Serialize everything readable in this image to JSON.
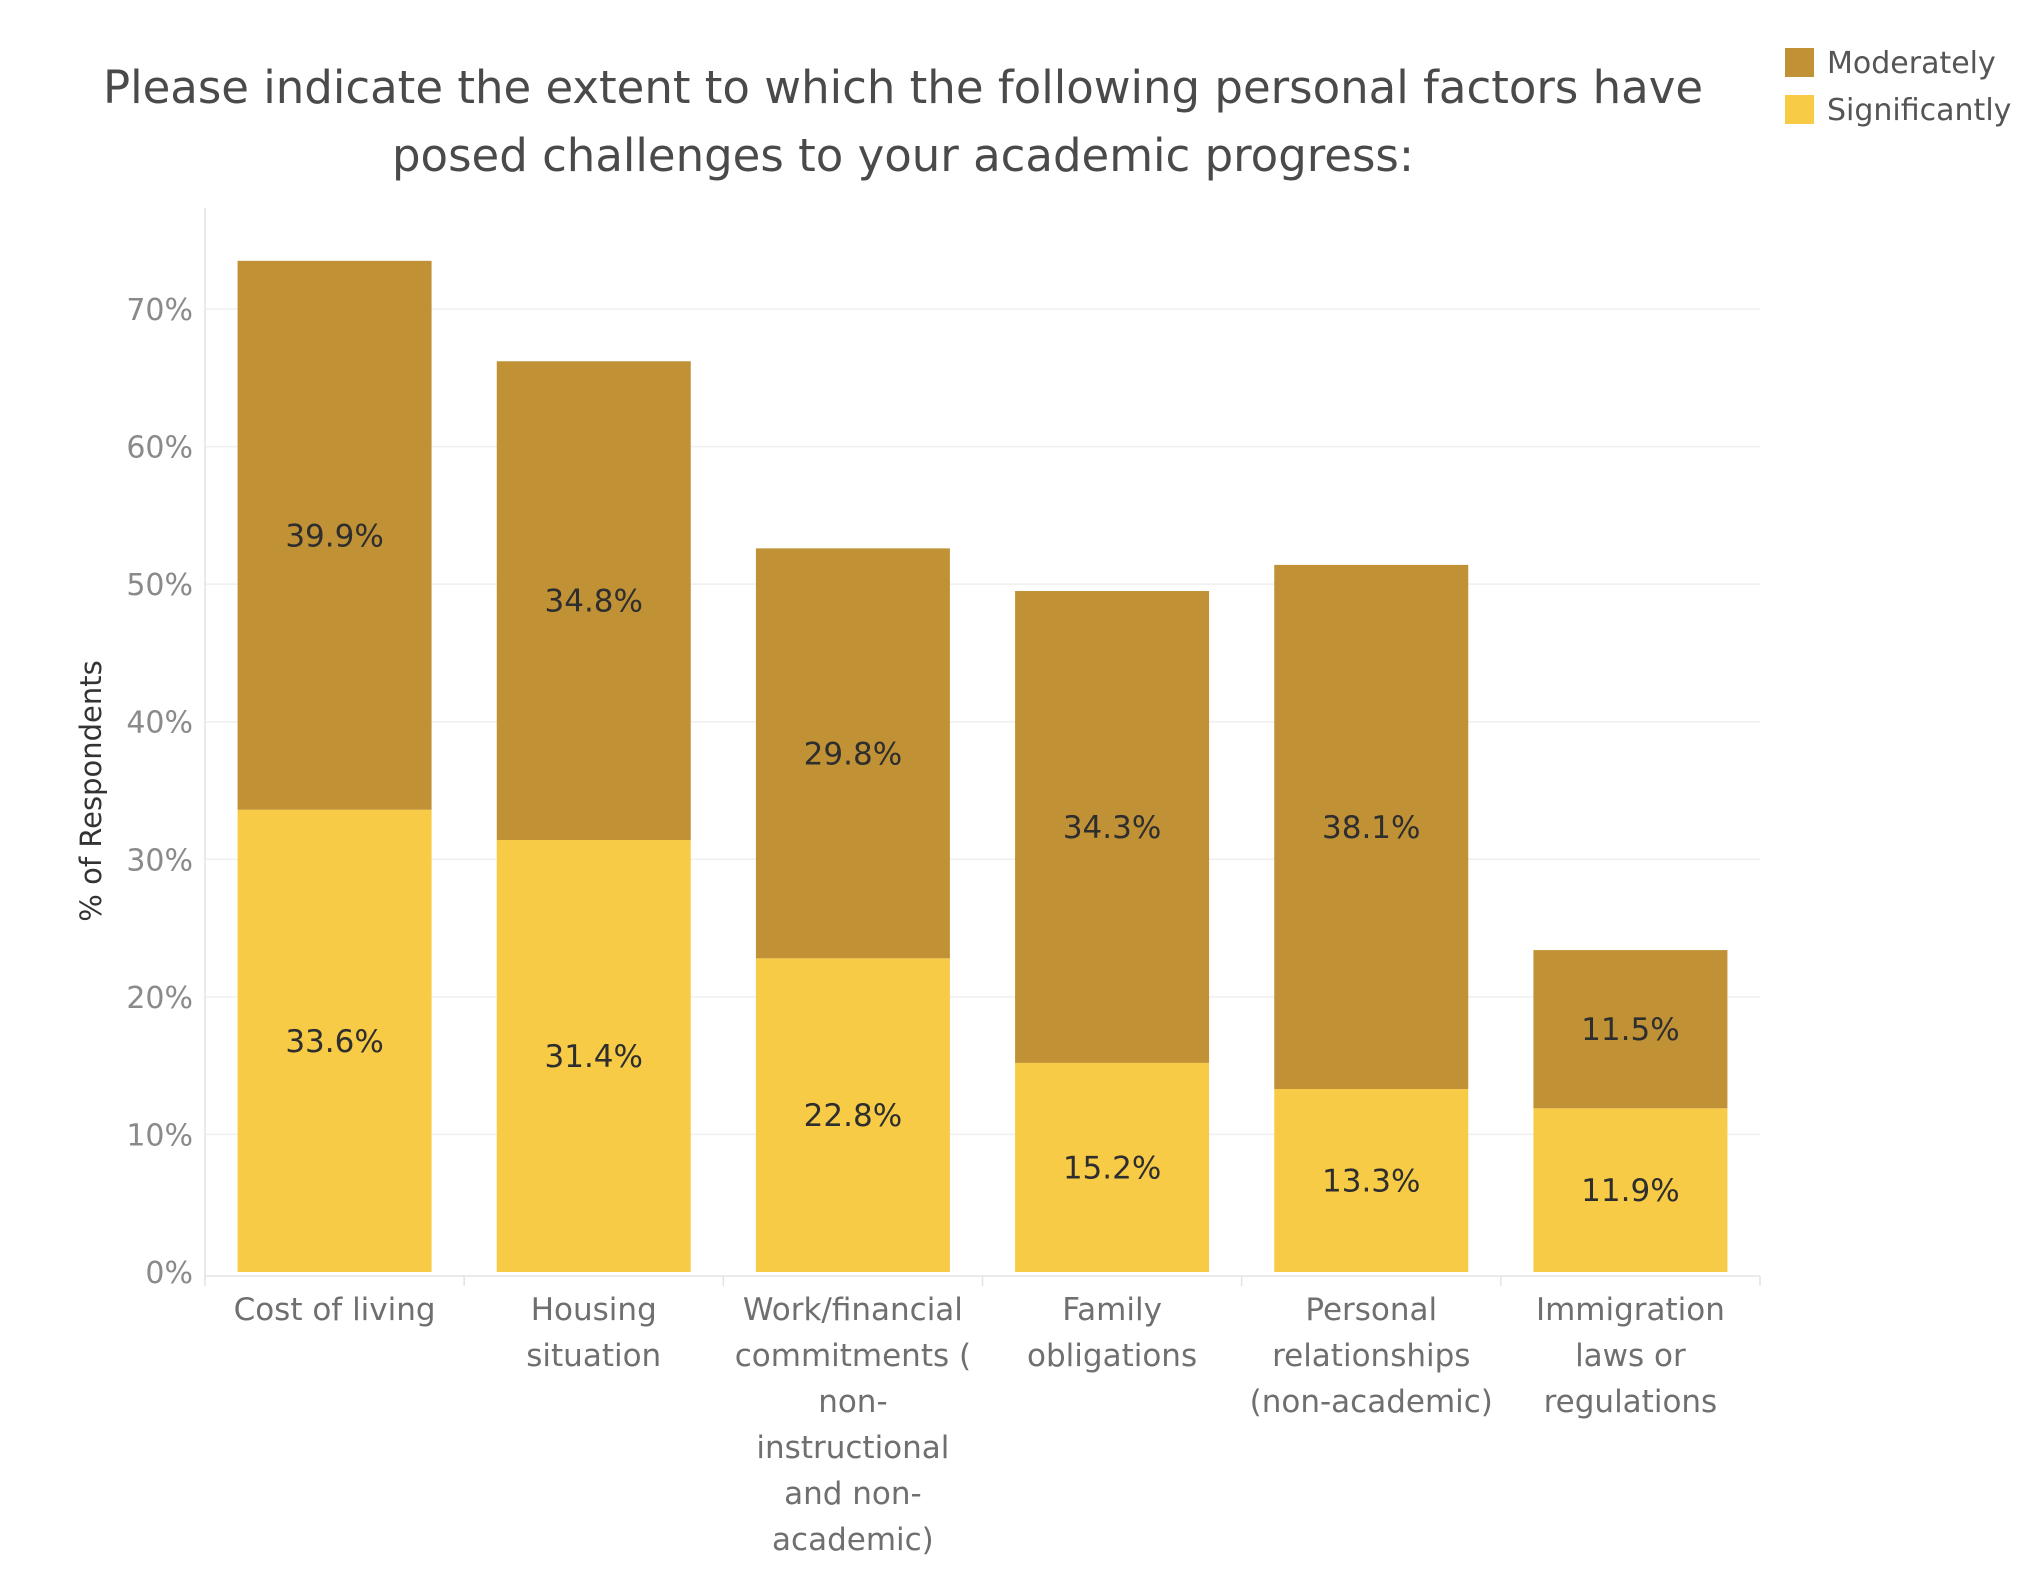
{
  "chart_data": {
    "type": "bar",
    "stacked": true,
    "title": "Please indicate the extent to which the following personal factors have posed challenges to your academic progress:",
    "title_lines": [
      "Please indicate the extent to which the following personal factors have",
      "posed challenges to your academic progress:"
    ],
    "xlabel": "",
    "ylabel": "% of Respondents",
    "ylim": [
      0,
      76
    ],
    "yticks": [
      0,
      10,
      20,
      30,
      40,
      50,
      60,
      70
    ],
    "ytick_labels": [
      "0%",
      "10%",
      "20%",
      "30%",
      "40%",
      "50%",
      "60%",
      "70%"
    ],
    "grid": true,
    "legend_position": "top-right",
    "categories": [
      "Cost of living",
      "Housing situation",
      "Work/financial commitments ( non-instructional and non-academic)",
      "Family obligations",
      "Personal relationships (non-academic)",
      "Immigration laws or regulations"
    ],
    "category_lines": [
      [
        "Cost of living"
      ],
      [
        "Housing",
        "situation"
      ],
      [
        "Work/financial",
        "commitments (",
        "non-",
        "instructional",
        "and non-",
        "academic)"
      ],
      [
        "Family",
        "obligations"
      ],
      [
        "Personal",
        "relationships",
        "(non-academic)"
      ],
      [
        "Immigration",
        "laws or",
        "regulations"
      ]
    ],
    "series": [
      {
        "name": "Significantly",
        "color": "#F8CB46",
        "values": [
          33.6,
          31.4,
          22.8,
          15.2,
          13.3,
          11.9
        ],
        "labels": [
          "33.6%",
          "31.4%",
          "22.8%",
          "15.2%",
          "13.3%",
          "11.9%"
        ]
      },
      {
        "name": "Moderately",
        "color": "#C19235",
        "values": [
          39.9,
          34.8,
          29.8,
          34.3,
          38.1,
          11.5
        ],
        "labels": [
          "39.9%",
          "34.8%",
          "29.8%",
          "34.3%",
          "38.1%",
          "11.5%"
        ]
      }
    ],
    "legend": [
      {
        "name": "Moderately",
        "color": "#C19235"
      },
      {
        "name": "Significantly",
        "color": "#F8CB46"
      }
    ]
  }
}
